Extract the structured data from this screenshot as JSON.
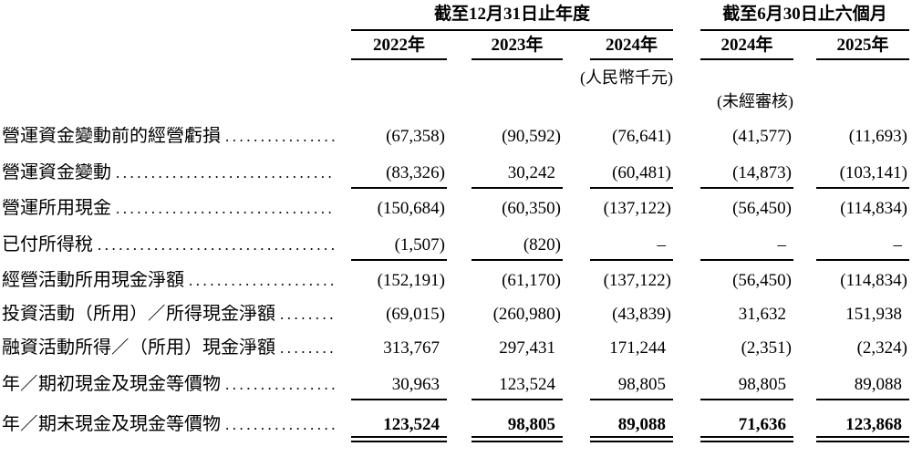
{
  "table": {
    "col_groups": [
      {
        "title": "截至12月31日止年度",
        "columns": [
          "2022年",
          "2023年",
          "2024年"
        ]
      },
      {
        "title": "截至6月30日止六個月",
        "columns": [
          "2024年",
          "2025年"
        ]
      }
    ],
    "columns": [
      "2022年",
      "2023年",
      "2024年",
      "2024年",
      "2025年"
    ],
    "unit_note": "(人民幣千元)",
    "unaudited_note": "(未經審核)",
    "leader_dots": ".......................................................",
    "rows": [
      {
        "label": "營運資金變動前的經營虧損",
        "values": [
          "(67,358)",
          "(90,592)",
          "(76,641)",
          "(41,577)",
          "(11,693)"
        ],
        "underline": "none",
        "bold": false
      },
      {
        "label": "營運資金變動",
        "values": [
          "(83,326)",
          "30,242",
          "(60,481)",
          "(14,873)",
          "(103,141)"
        ],
        "underline": "single",
        "bold": false
      },
      {
        "label": "營運所用現金",
        "values": [
          "(150,684)",
          "(60,350)",
          "(137,122)",
          "(56,450)",
          "(114,834)"
        ],
        "underline": "none",
        "bold": false
      },
      {
        "label": "已付所得稅",
        "values": [
          "(1,507)",
          "(820)",
          "–",
          "–",
          "–"
        ],
        "underline": "single",
        "bold": false
      },
      {
        "label": "經營活動所用現金淨額",
        "values": [
          "(152,191)",
          "(61,170)",
          "(137,122)",
          "(56,450)",
          "(114,834)"
        ],
        "underline": "none",
        "bold": false
      },
      {
        "label": "投資活動（所用）／所得現金淨額",
        "values": [
          "(69,015)",
          "(260,980)",
          "(43,839)",
          "31,632",
          "151,938"
        ],
        "underline": "none",
        "bold": false
      },
      {
        "label": "融資活動所得／（所用）現金淨額",
        "values": [
          "313,767",
          "297,431",
          "171,244",
          "(2,351)",
          "(2,324)"
        ],
        "underline": "none",
        "bold": false
      },
      {
        "label": "年／期初現金及現金等價物",
        "values": [
          "30,963",
          "123,524",
          "98,805",
          "98,805",
          "89,088"
        ],
        "underline": "single",
        "bold": false
      },
      {
        "label": "年／期末現金及現金等價物",
        "values": [
          "123,524",
          "98,805",
          "89,088",
          "71,636",
          "123,868"
        ],
        "underline": "double",
        "bold": true
      }
    ]
  }
}
